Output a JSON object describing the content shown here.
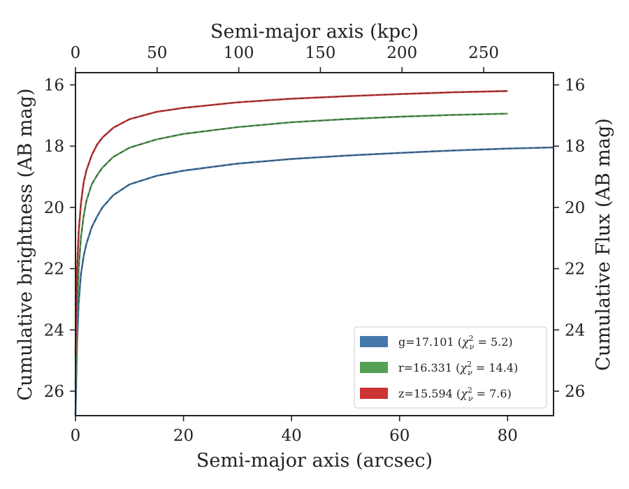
{
  "chart_data": {
    "type": "line",
    "xlabel": "Semi-major axis (arcsec)",
    "x2label": "Semi-major axis (kpc)",
    "ylabel": "Cumulative brightness (AB mag)",
    "y2label": "Cumulative Flux (AB mag)",
    "xlim": [
      0,
      88.5
    ],
    "x2lim": [
      0,
      292.8
    ],
    "ylim": [
      26.8,
      15.6
    ],
    "y_inverted": true,
    "xticks": [
      0,
      20,
      40,
      60,
      80
    ],
    "x2ticks": [
      0,
      50,
      100,
      150,
      200,
      250
    ],
    "yticks": [
      16,
      18,
      20,
      22,
      24,
      26
    ],
    "legend_position": "lower-right",
    "grid": false,
    "series": [
      {
        "name": "g=17.101 (χ²ν = 5.2)",
        "label_main": "g=17.101 (",
        "label_fit": "5.2",
        "color": "#4477aa",
        "x": [
          0,
          0.3,
          0.6,
          1,
          1.5,
          2,
          3,
          4,
          5,
          7,
          10,
          15,
          20,
          30,
          40,
          50,
          60,
          70,
          80,
          88.5
        ],
        "y": [
          26.8,
          24.4,
          23.1,
          22.2,
          21.6,
          21.2,
          20.65,
          20.3,
          20.0,
          19.6,
          19.25,
          18.97,
          18.8,
          18.57,
          18.42,
          18.31,
          18.22,
          18.14,
          18.08,
          18.04
        ]
      },
      {
        "name": "r=16.331 (χ²ν = 14.4)",
        "label_main": "r=16.331 (",
        "label_fit": "14.4",
        "color": "#55a055",
        "x": [
          0,
          0.3,
          0.6,
          1,
          1.5,
          2,
          3,
          4,
          5,
          7,
          10,
          15,
          20,
          30,
          40,
          50,
          60,
          70,
          80
        ],
        "y": [
          25.8,
          23.2,
          22.0,
          21.0,
          20.3,
          19.8,
          19.25,
          18.95,
          18.7,
          18.35,
          18.05,
          17.78,
          17.6,
          17.38,
          17.22,
          17.12,
          17.04,
          16.98,
          16.94
        ]
      },
      {
        "name": "z=15.594 (χ²ν = 7.6)",
        "label_main": "z=15.594 (",
        "label_fit": "7.6",
        "color": "#cc3333",
        "x": [
          0,
          0.3,
          0.6,
          1,
          1.5,
          2,
          3,
          4,
          5,
          7,
          10,
          15,
          20,
          30,
          40,
          50,
          60,
          70,
          80
        ],
        "y": [
          24.8,
          22.0,
          20.8,
          19.9,
          19.2,
          18.8,
          18.3,
          17.95,
          17.72,
          17.4,
          17.12,
          16.88,
          16.75,
          16.57,
          16.45,
          16.37,
          16.3,
          16.24,
          16.2
        ]
      }
    ]
  }
}
